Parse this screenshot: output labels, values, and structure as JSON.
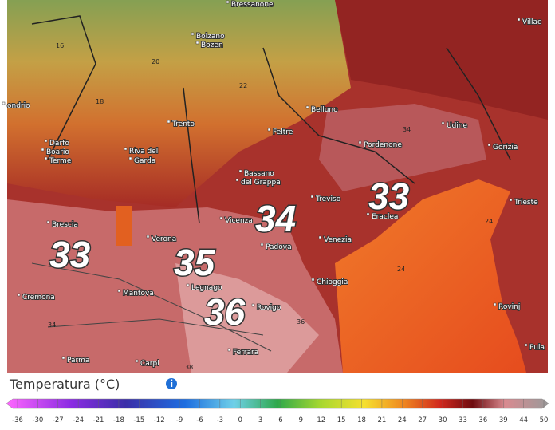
{
  "map": {
    "cities": [
      "Bressanone",
      "Villac",
      "Bolzano",
      "Bozen",
      "ondrio",
      "Trento",
      "Belluno",
      "Udine",
      "Feltre",
      "Pordenone",
      "Gorizia",
      "Darfo",
      "Boario",
      "Terme",
      "Riva del",
      "Garda",
      "Bassano",
      "del Grappa",
      "Treviso",
      "Trieste",
      "Brescia",
      "Eraclea",
      "Vicenza",
      "Verona",
      "Padova",
      "Venezia",
      "Legnago",
      "Cremona",
      "Mantova",
      "Chioggia",
      "Rovigo",
      "Rovinj",
      "Pula",
      "Parma",
      "Carpi",
      "Ferrara"
    ],
    "big_temperatures": [
      "33",
      "34",
      "35",
      "36",
      "33"
    ],
    "small_temperatures": [
      "24",
      "24",
      "34",
      "36",
      "34",
      "38",
      "20",
      "22",
      "18",
      "16"
    ]
  },
  "legend": {
    "title": "Temperatura (°C)",
    "ticks": [
      "-36",
      "-30",
      "-27",
      "-24",
      "-21",
      "-18",
      "-15",
      "-12",
      "-9",
      "-6",
      "-3",
      "0",
      "3",
      "6",
      "9",
      "12",
      "15",
      "18",
      "21",
      "24",
      "27",
      "30",
      "33",
      "36",
      "39",
      "44",
      "50"
    ]
  }
}
